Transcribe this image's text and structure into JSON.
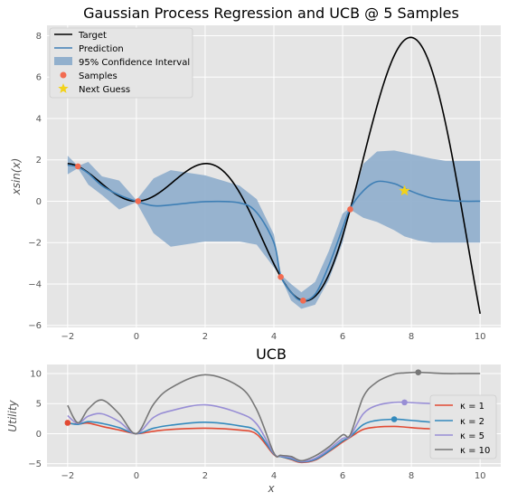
{
  "chart_data": [
    {
      "type": "line",
      "title": "Gaussian Process Regression and UCB @ 5 Samples",
      "ylabel": "xsin(x)",
      "xlabel": "",
      "xlim": [
        -2.6,
        10.6
      ],
      "ylim": [
        -6.1,
        8.5
      ],
      "x_ticks": [
        -2,
        0,
        2,
        4,
        6,
        8,
        10
      ],
      "y_ticks": [
        -6,
        -4,
        -2,
        0,
        2,
        4,
        6,
        8
      ],
      "x_tick_labels": [
        "−2",
        "0",
        "2",
        "4",
        "6",
        "8",
        "10"
      ],
      "y_tick_labels": [
        "−6",
        "−4",
        "−2",
        "0",
        "2",
        "4",
        "6",
        "8"
      ],
      "grid": true,
      "legend_position": "top-left",
      "legend": [
        "Target",
        "Prediction",
        "95% Confidence Interval",
        "Samples",
        "Next Guess"
      ],
      "colors": {
        "target": "#000000",
        "prediction": "#3e7fb5",
        "confidence": "#92b0cd",
        "samples": "#f26b50",
        "next_guess": "#f2d21a",
        "background": "#e5e5e5"
      },
      "prediction": {
        "x": [
          -2,
          -1.7,
          -1.4,
          -1,
          -0.5,
          0,
          0.5,
          1,
          2,
          3,
          3.5,
          4,
          4.2,
          4.5,
          4.8,
          5.2,
          5.6,
          6,
          6.22,
          6.6,
          7,
          7.5,
          7.8,
          8.2,
          8.6,
          9,
          9.5,
          10
        ],
        "y": [
          1.75,
          1.65,
          1.35,
          0.75,
          0.3,
          0.0,
          -0.22,
          -0.18,
          -0.02,
          -0.08,
          -0.55,
          -2.0,
          -3.6,
          -4.4,
          -4.8,
          -4.5,
          -3.1,
          -1.3,
          -0.35,
          0.5,
          0.95,
          0.85,
          0.62,
          0.35,
          0.15,
          0.05,
          0.0,
          0.0
        ]
      },
      "ci_upper": [
        2.2,
        1.7,
        1.9,
        1.2,
        1.0,
        0.05,
        1.1,
        1.5,
        1.25,
        0.75,
        0.1,
        -1.6,
        -3.55,
        -4.0,
        -4.4,
        -3.9,
        -2.4,
        -0.6,
        -0.3,
        1.8,
        2.4,
        2.45,
        2.35,
        2.2,
        2.05,
        1.95,
        1.95,
        1.95
      ],
      "ci_lower": [
        1.3,
        1.6,
        0.8,
        0.3,
        -0.4,
        -0.05,
        -1.55,
        -2.2,
        -1.95,
        -1.95,
        -2.1,
        -3.2,
        -3.65,
        -4.8,
        -5.2,
        -5.0,
        -3.8,
        -2.0,
        -0.4,
        -0.8,
        -1.0,
        -1.4,
        -1.7,
        -1.9,
        -2.0,
        -2.0,
        -2.0,
        -2.0
      ]
    },
    {
      "type": "line",
      "title": "UCB",
      "ylabel": "Utility",
      "xlabel": "x",
      "xlim": [
        -2.6,
        10.6
      ],
      "ylim": [
        -5.5,
        11.5
      ],
      "x_ticks": [
        -2,
        0,
        2,
        4,
        6,
        8,
        10
      ],
      "y_ticks": [
        -5,
        0,
        5,
        10
      ],
      "x_tick_labels": [
        "−2",
        "0",
        "2",
        "4",
        "6",
        "8",
        "10"
      ],
      "y_tick_labels": [
        "−5",
        "0",
        "5",
        "10"
      ],
      "grid": true,
      "legend_position": "center-right",
      "legend": [
        "κ = 1",
        "κ = 2",
        "κ = 5",
        "κ = 10"
      ],
      "x": [
        -2,
        -1.7,
        -1.4,
        -1,
        -0.5,
        0,
        0.5,
        1,
        2,
        3,
        3.5,
        4,
        4.2,
        4.5,
        4.8,
        5.2,
        5.6,
        6,
        6.22,
        6.6,
        7,
        7.5,
        7.8,
        8.2,
        8.6,
        9,
        9.5,
        10
      ],
      "series": [
        {
          "name": "κ = 1",
          "color": "#e24a33",
          "max_x": -2,
          "max_y": 1.8,
          "values": [
            1.75,
            1.6,
            1.75,
            1.2,
            0.6,
            0.0,
            0.4,
            0.7,
            0.9,
            0.6,
            -0.1,
            -3.5,
            -3.8,
            -4.3,
            -4.8,
            -4.4,
            -3.0,
            -1.4,
            -0.6,
            0.7,
            1.1,
            1.2,
            1.1,
            0.9,
            0.8,
            0.75,
            0.8,
            0.8
          ]
        },
        {
          "name": "κ = 2",
          "color": "#348abd",
          "max_x": 7.5,
          "max_y": 2.4,
          "values": [
            1.8,
            1.55,
            2.0,
            1.7,
            1.0,
            0.0,
            0.9,
            1.4,
            1.9,
            1.3,
            0.4,
            -3.4,
            -3.8,
            -4.2,
            -4.7,
            -4.3,
            -2.9,
            -1.2,
            -0.5,
            1.5,
            2.2,
            2.4,
            2.3,
            2.1,
            1.9,
            1.85,
            1.85,
            1.85
          ]
        },
        {
          "name": "κ = 5",
          "color": "#988ed5",
          "max_x": 7.8,
          "max_y": 5.2,
          "values": [
            3.0,
            1.7,
            2.9,
            3.3,
            2.0,
            0.0,
            2.7,
            3.8,
            4.8,
            3.4,
            1.6,
            -3.3,
            -3.7,
            -4.0,
            -4.6,
            -4.1,
            -2.6,
            -0.8,
            -0.4,
            3.3,
            4.7,
            5.2,
            5.2,
            5.1,
            5.0,
            4.9,
            4.9,
            4.9
          ]
        },
        {
          "name": "κ = 10",
          "color": "#777777",
          "max_x": 8.2,
          "max_y": 10.2,
          "values": [
            4.7,
            1.8,
            4.1,
            5.6,
            3.3,
            0.0,
            4.9,
            7.6,
            9.8,
            7.8,
            4.0,
            -3.2,
            -3.6,
            -3.8,
            -4.5,
            -3.7,
            -2.2,
            -0.2,
            -0.2,
            6.1,
            8.6,
            9.9,
            10.1,
            10.2,
            10.1,
            10.0,
            10.0,
            10.0
          ]
        }
      ]
    }
  ]
}
